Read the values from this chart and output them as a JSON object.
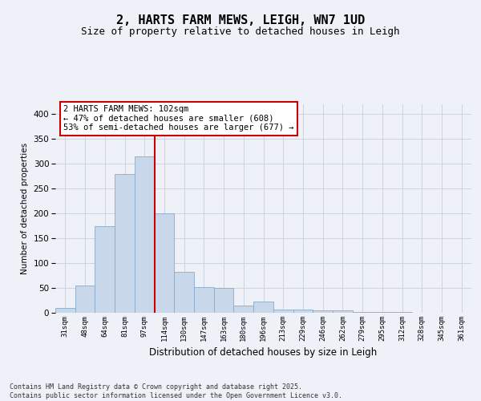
{
  "title": "2, HARTS FARM MEWS, LEIGH, WN7 1UD",
  "subtitle": "Size of property relative to detached houses in Leigh",
  "xlabel": "Distribution of detached houses by size in Leigh",
  "ylabel": "Number of detached properties",
  "categories": [
    "31sqm",
    "48sqm",
    "64sqm",
    "81sqm",
    "97sqm",
    "114sqm",
    "130sqm",
    "147sqm",
    "163sqm",
    "180sqm",
    "196sqm",
    "213sqm",
    "229sqm",
    "246sqm",
    "262sqm",
    "279sqm",
    "295sqm",
    "312sqm",
    "328sqm",
    "345sqm",
    "361sqm"
  ],
  "values": [
    10,
    55,
    175,
    280,
    315,
    200,
    82,
    52,
    50,
    15,
    22,
    6,
    6,
    5,
    5,
    2,
    1,
    1,
    0,
    0,
    0
  ],
  "bar_color": "#c8d8ea",
  "bar_edge_color": "#8aaac8",
  "grid_color": "#c8d0dc",
  "red_line_x": 4.5,
  "annotation_text": "2 HARTS FARM MEWS: 102sqm\n← 47% of detached houses are smaller (608)\n53% of semi-detached houses are larger (677) →",
  "annotation_box_color": "#ffffff",
  "annotation_box_edge": "#cc0000",
  "property_line_color": "#cc0000",
  "ylim": [
    0,
    420
  ],
  "yticks": [
    0,
    50,
    100,
    150,
    200,
    250,
    300,
    350,
    400
  ],
  "footer_text": "Contains HM Land Registry data © Crown copyright and database right 2025.\nContains public sector information licensed under the Open Government Licence v3.0.",
  "title_fontsize": 11,
  "subtitle_fontsize": 9,
  "background_color": "#eef2f8"
}
